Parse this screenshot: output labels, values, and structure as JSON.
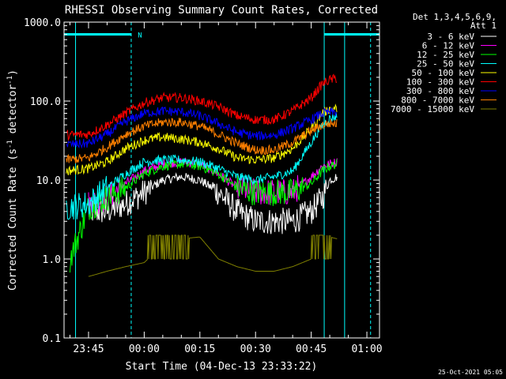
{
  "chart_data": {
    "type": "line",
    "title": "RHESSI Observing Summary Count Rates, Corrected",
    "ylabel_parts": [
      "Corrected Count Rate (s",
      "-1",
      " detector",
      "-1",
      ")"
    ],
    "xlabel": "Start Time (04-Dec-13 23:33:22)",
    "timestamp": "25-Oct-2021 05:05",
    "y_scale": "log",
    "ylim": [
      0.1,
      1000
    ],
    "y_ticks": [
      {
        "value": 1000,
        "label": "1000.0"
      },
      {
        "value": 100,
        "label": "100.0"
      },
      {
        "value": 10,
        "label": "10.0"
      },
      {
        "value": 1,
        "label": "1.0"
      },
      {
        "value": 0.1,
        "label": "0.1"
      }
    ],
    "x_range_minutes": [
      -21.6,
      63.4
    ],
    "x_ticks": [
      {
        "minute": -15,
        "label": "23:45"
      },
      {
        "minute": 0,
        "label": "00:00"
      },
      {
        "minute": 15,
        "label": "00:15"
      },
      {
        "minute": 30,
        "label": "00:30"
      },
      {
        "minute": 45,
        "label": "00:45"
      },
      {
        "minute": 60,
        "label": "01:00"
      }
    ],
    "legend": {
      "header": [
        "Det 1,3,4,5,6,9,",
        "Att 1"
      ],
      "placement": "right, outside plot"
    },
    "background_color": "#000000",
    "axis_color": "#ffffff",
    "night_lines_minutes": [
      -18.5,
      54
    ],
    "night_line_color": "#00ffff",
    "night_boxes": [
      {
        "start": -21.6,
        "end": -3.5
      },
      {
        "start": 48.5,
        "end": 63.4
      }
    ],
    "night_box_value": 700,
    "saa_markers": [
      {
        "minute": -3.5,
        "type": "dashed"
      },
      {
        "minute": 48.5,
        "type": "solid"
      },
      {
        "minute": 61,
        "type": "dashed"
      }
    ],
    "flag_marker": {
      "label": "N",
      "minute": -3,
      "value": 700
    },
    "series": [
      {
        "name": "3 - 6 keV",
        "color": "#ffffff",
        "x": [
          -15,
          -10,
          -5,
          0,
          5,
          10,
          15,
          20,
          25,
          30,
          35,
          40,
          45,
          48,
          50,
          52
        ],
        "y": [
          4,
          4,
          5,
          7,
          10,
          11,
          10,
          7,
          4,
          3,
          3,
          3,
          4,
          6,
          10,
          11
        ]
      },
      {
        "name": "6 - 12 keV",
        "color": "#ff00ff",
        "x": [
          -15,
          -10,
          -5,
          0,
          5,
          10,
          15,
          20,
          25,
          30,
          35,
          40,
          45,
          48,
          50,
          52
        ],
        "y": [
          5,
          6,
          9,
          13,
          16,
          17,
          16,
          12,
          8,
          7,
          7,
          7,
          11,
          15,
          16,
          17
        ]
      },
      {
        "name": "12 - 25 keV",
        "color": "#00ff00",
        "x": [
          -20,
          -15,
          -10,
          -5,
          0,
          5,
          10,
          15,
          20,
          25,
          30,
          35,
          40,
          45,
          48,
          50,
          52
        ],
        "y": [
          1,
          4.5,
          6,
          8,
          12,
          15,
          16,
          15,
          12,
          8,
          7,
          7,
          7,
          9,
          13,
          15,
          16
        ]
      },
      {
        "name": "25 - 50 keV",
        "color": "#00ffff",
        "x": [
          -21,
          -15,
          -10,
          -5,
          0,
          5,
          10,
          15,
          20,
          25,
          30,
          35,
          40,
          45,
          48,
          50,
          52
        ],
        "y": [
          4.5,
          5,
          8,
          12,
          17,
          18,
          18,
          17,
          14,
          11,
          10,
          11,
          13,
          30,
          50,
          60,
          65
        ]
      },
      {
        "name": "50 - 100 keV",
        "color": "#ffff00",
        "x": [
          -21,
          -15,
          -10,
          -5,
          0,
          5,
          10,
          15,
          20,
          25,
          30,
          35,
          40,
          45,
          48,
          50,
          52
        ],
        "y": [
          13,
          14,
          17,
          25,
          32,
          35,
          33,
          30,
          25,
          19,
          18,
          19,
          25,
          45,
          70,
          80,
          80
        ]
      },
      {
        "name": "100 - 300 keV",
        "color": "#ff0000",
        "x": [
          -21,
          -15,
          -10,
          -5,
          0,
          5,
          10,
          15,
          20,
          25,
          30,
          35,
          40,
          45,
          48,
          50,
          52
        ],
        "y": [
          37,
          38,
          50,
          70,
          95,
          110,
          110,
          100,
          85,
          65,
          58,
          58,
          75,
          110,
          165,
          185,
          195
        ]
      },
      {
        "name": "300 - 800 keV",
        "color": "#0000ff",
        "x": [
          -21,
          -15,
          -10,
          -5,
          0,
          5,
          10,
          15,
          20,
          25,
          30,
          35,
          40,
          45,
          48,
          50,
          52
        ],
        "y": [
          28,
          29,
          38,
          55,
          70,
          75,
          73,
          65,
          52,
          40,
          36,
          37,
          45,
          58,
          70,
          72,
          72
        ]
      },
      {
        "name": "800 - 7000 keV",
        "color": "#ff8000",
        "x": [
          -21,
          -15,
          -10,
          -5,
          0,
          5,
          10,
          15,
          20,
          25,
          30,
          35,
          40,
          45,
          48,
          50,
          52
        ],
        "y": [
          18,
          19,
          26,
          38,
          48,
          54,
          54,
          48,
          38,
          29,
          24,
          24,
          30,
          42,
          50,
          52,
          52
        ]
      },
      {
        "name": "7000 - 15000 keV",
        "color": "#808000",
        "x": [
          -15,
          -10,
          -5,
          0,
          5,
          10,
          15,
          20,
          25,
          30,
          35,
          40,
          45,
          48,
          50,
          52
        ],
        "y": [
          0.6,
          0.7,
          0.8,
          0.9,
          1.5,
          1.8,
          1.9,
          1.0,
          0.8,
          0.7,
          0.7,
          0.8,
          1.0,
          1.6,
          1.9,
          1.8
        ]
      }
    ],
    "grid": false
  }
}
